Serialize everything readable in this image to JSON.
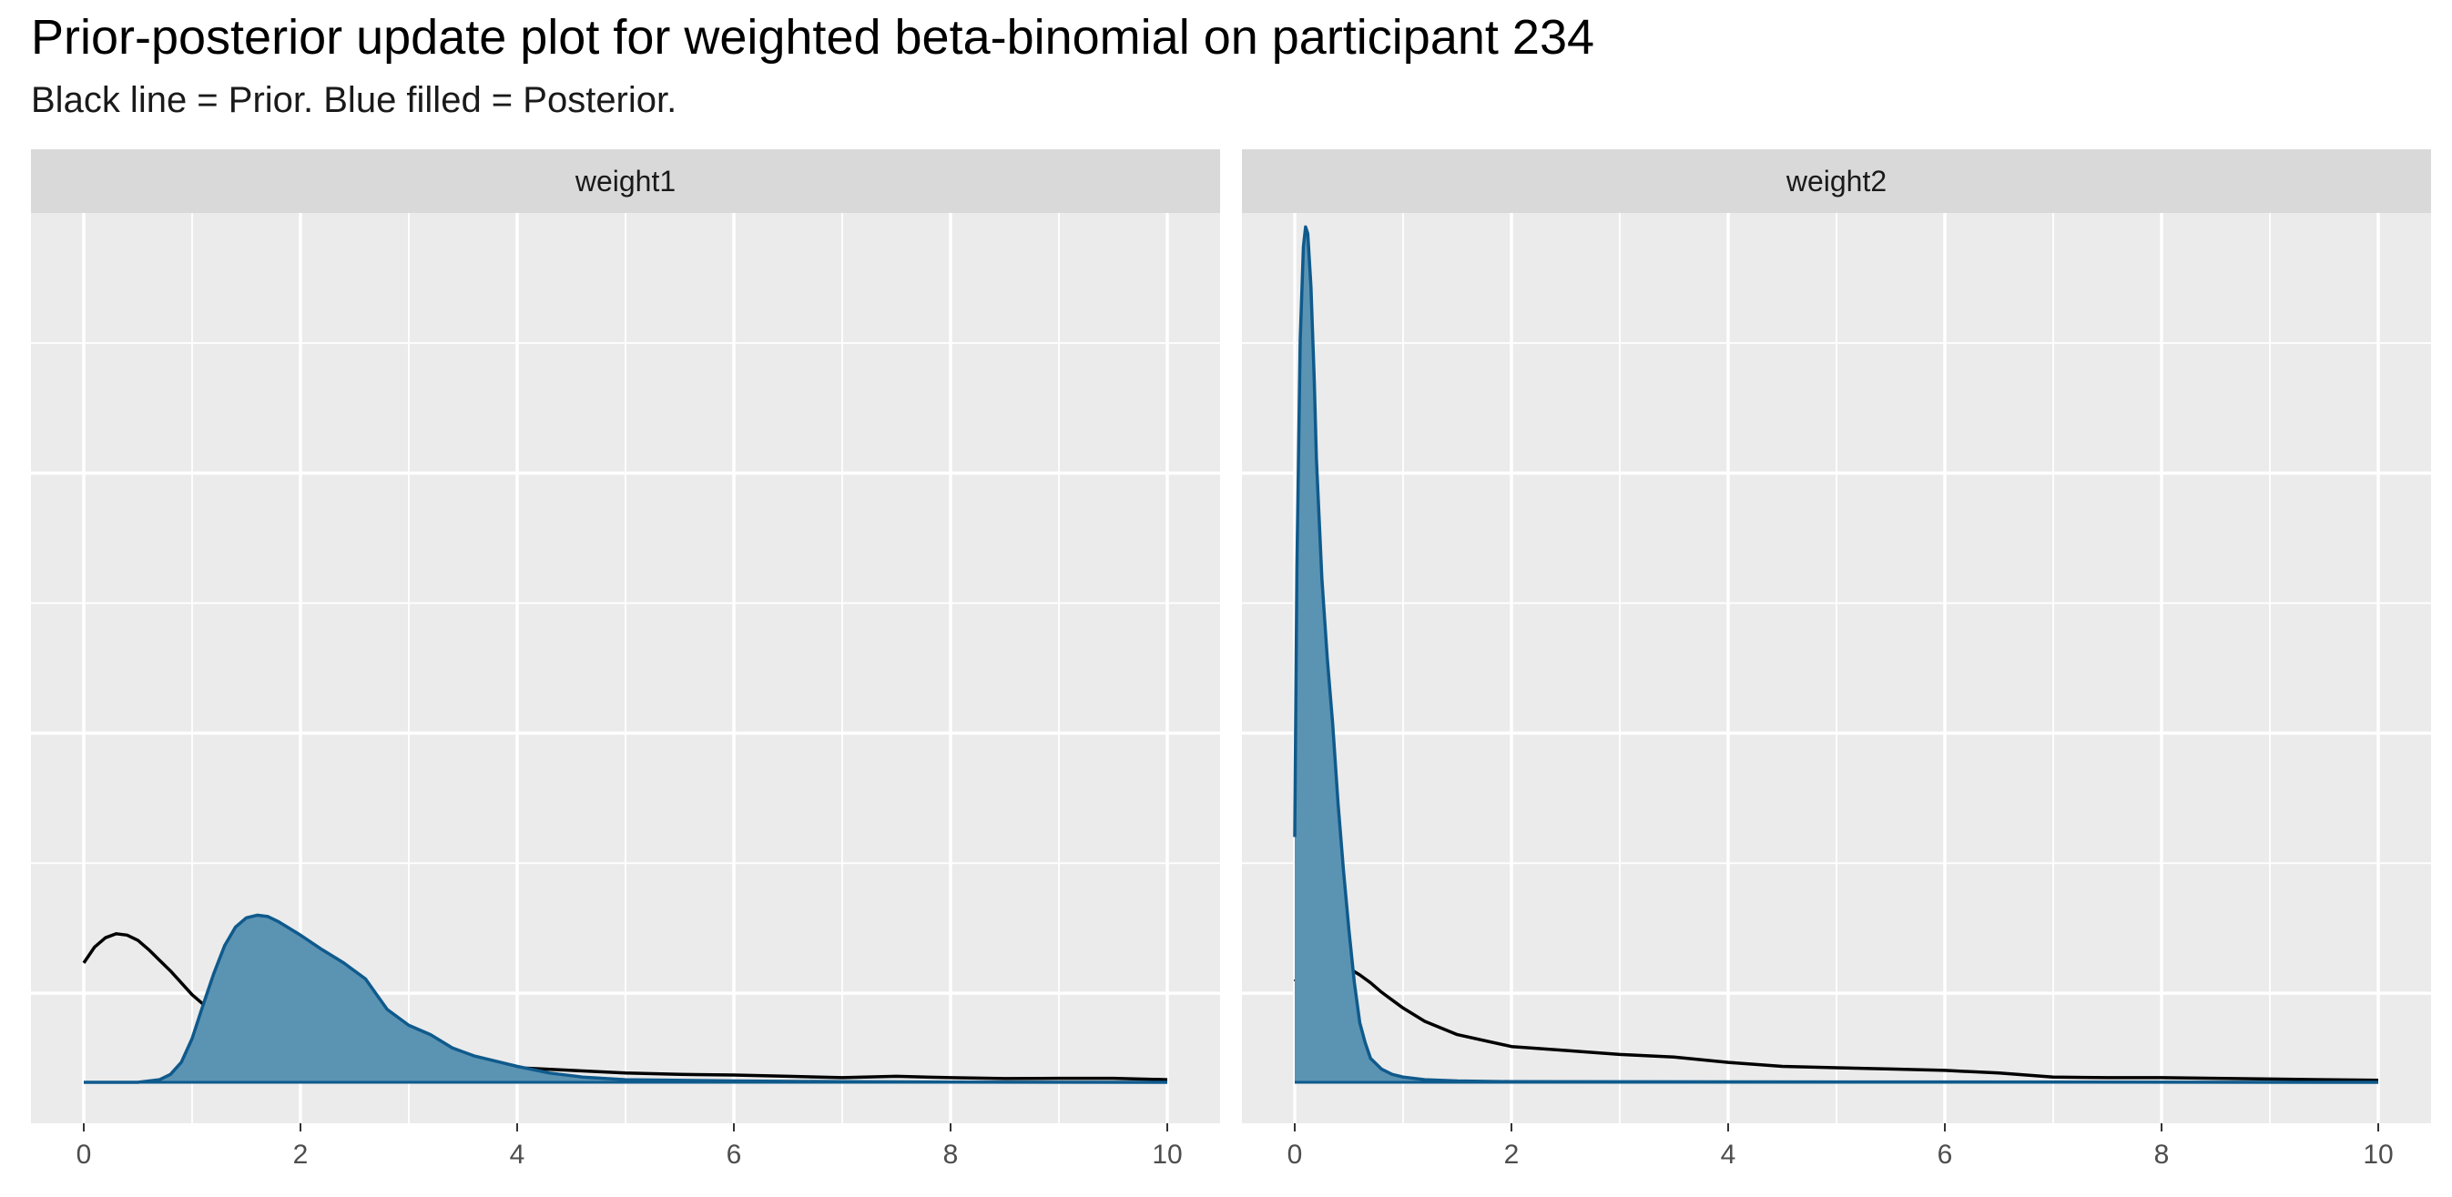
{
  "chart_data": {
    "type": "area",
    "title": "Prior-posterior update plot for weighted beta-binomial on participant 234",
    "subtitle": "Black line = Prior. Blue filled = Posterior.",
    "xlabel": "",
    "ylabel": "",
    "xlim": [
      0,
      10
    ],
    "ylim": [
      0,
      6.5
    ],
    "x_ticks": [
      "0",
      "2",
      "4",
      "6",
      "8",
      "10"
    ],
    "y_tick_labels_shown": false,
    "grid": true,
    "colors": {
      "posterior_fill": "#5b93b3",
      "posterior_line": "#0f5a8c",
      "prior_line": "#000000",
      "panel_bg": "#ebebeb",
      "strip_bg": "#d9d9d9",
      "grid": "#ffffff"
    },
    "panels": [
      {
        "label": "weight1",
        "series": [
          {
            "role": "prior",
            "style": "line",
            "x": [
              0,
              0.1,
              0.2,
              0.3,
              0.4,
              0.5,
              0.6,
              0.7,
              0.8,
              0.9,
              1.0,
              1.2,
              1.4,
              1.6,
              1.8,
              2.0,
              2.3,
              2.6,
              3.0,
              3.5,
              4.0,
              4.5,
              5.0,
              5.5,
              6.0,
              6.5,
              7.0,
              7.5,
              8.0,
              8.5,
              9.0,
              9.5,
              10.0
            ],
            "y": [
              0.9,
              1.02,
              1.09,
              1.12,
              1.11,
              1.07,
              1.0,
              0.92,
              0.84,
              0.75,
              0.66,
              0.52,
              0.42,
              0.34,
              0.29,
              0.25,
              0.21,
              0.18,
              0.14,
              0.13,
              0.11,
              0.09,
              0.07,
              0.06,
              0.055,
              0.045,
              0.035,
              0.045,
              0.035,
              0.028,
              0.03,
              0.03,
              0.02
            ]
          },
          {
            "role": "posterior",
            "style": "area",
            "x": [
              0,
              0.5,
              0.7,
              0.8,
              0.9,
              1.0,
              1.1,
              1.2,
              1.3,
              1.4,
              1.5,
              1.6,
              1.7,
              1.8,
              1.9,
              2.0,
              2.2,
              2.4,
              2.6,
              2.8,
              3.0,
              3.2,
              3.4,
              3.6,
              3.8,
              4.0,
              4.3,
              4.6,
              5.0,
              6.0,
              7.0,
              8.0,
              10.0
            ],
            "y": [
              0,
              0,
              0.02,
              0.06,
              0.15,
              0.33,
              0.58,
              0.82,
              1.03,
              1.17,
              1.24,
              1.26,
              1.25,
              1.21,
              1.16,
              1.11,
              1.0,
              0.9,
              0.78,
              0.55,
              0.43,
              0.36,
              0.26,
              0.2,
              0.16,
              0.12,
              0.07,
              0.04,
              0.02,
              0.01,
              0.005,
              0.002,
              0
            ]
          }
        ]
      },
      {
        "label": "weight2",
        "series": [
          {
            "role": "prior",
            "style": "line",
            "x": [
              0,
              0.1,
              0.2,
              0.3,
              0.4,
              0.5,
              0.6,
              0.7,
              0.8,
              0.9,
              1.0,
              1.2,
              1.5,
              2.0,
              2.5,
              3.0,
              3.5,
              4.0,
              4.5,
              5.0,
              5.5,
              6.0,
              6.5,
              7.0,
              7.5,
              8.0,
              8.5,
              9.0,
              9.5,
              10.0
            ],
            "y": [
              0.76,
              0.84,
              0.88,
              0.9,
              0.89,
              0.86,
              0.81,
              0.75,
              0.68,
              0.62,
              0.56,
              0.46,
              0.36,
              0.27,
              0.24,
              0.21,
              0.19,
              0.15,
              0.12,
              0.11,
              0.1,
              0.09,
              0.07,
              0.04,
              0.035,
              0.035,
              0.03,
              0.025,
              0.02,
              0.015
            ]
          },
          {
            "role": "posterior",
            "style": "area",
            "x": [
              0,
              0.02,
              0.05,
              0.08,
              0.1,
              0.12,
              0.15,
              0.18,
              0.2,
              0.25,
              0.3,
              0.35,
              0.4,
              0.45,
              0.5,
              0.55,
              0.6,
              0.65,
              0.7,
              0.8,
              0.9,
              1.0,
              1.2,
              1.5,
              2.0,
              10.0
            ],
            "y": [
              1.85,
              3.9,
              5.6,
              6.3,
              6.45,
              6.4,
              6.0,
              5.3,
              4.7,
              3.8,
              3.2,
              2.7,
              2.1,
              1.6,
              1.15,
              0.75,
              0.45,
              0.3,
              0.18,
              0.1,
              0.06,
              0.04,
              0.02,
              0.01,
              0.005,
              0
            ]
          }
        ]
      }
    ]
  }
}
